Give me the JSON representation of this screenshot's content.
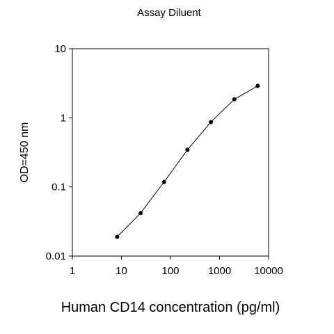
{
  "chart_data": {
    "type": "line",
    "title": "Assay Diluent",
    "xlabel": "Human CD14 concentration (pg/ml)",
    "ylabel": "OD=450 nm",
    "x_scale": "log",
    "y_scale": "log",
    "xlim": [
      1,
      10000
    ],
    "ylim": [
      0.01,
      10
    ],
    "x_ticks": [
      1,
      10,
      100,
      1000,
      10000
    ],
    "x_tick_labels": [
      "1",
      "10",
      "100",
      "1000",
      "10000"
    ],
    "y_ticks": [
      0.01,
      0.1,
      1,
      10
    ],
    "y_tick_labels": [
      "0.01",
      "0.1",
      "1",
      "10"
    ],
    "grid": false,
    "legend": "none",
    "series": [
      {
        "x": [
          8.2,
          24.7,
          74,
          222,
          667,
          2000,
          6000
        ],
        "y": [
          0.019,
          0.042,
          0.118,
          0.345,
          0.87,
          1.85,
          2.9
        ]
      }
    ],
    "colors": {
      "line": "#000000",
      "marker": "#000000"
    }
  }
}
